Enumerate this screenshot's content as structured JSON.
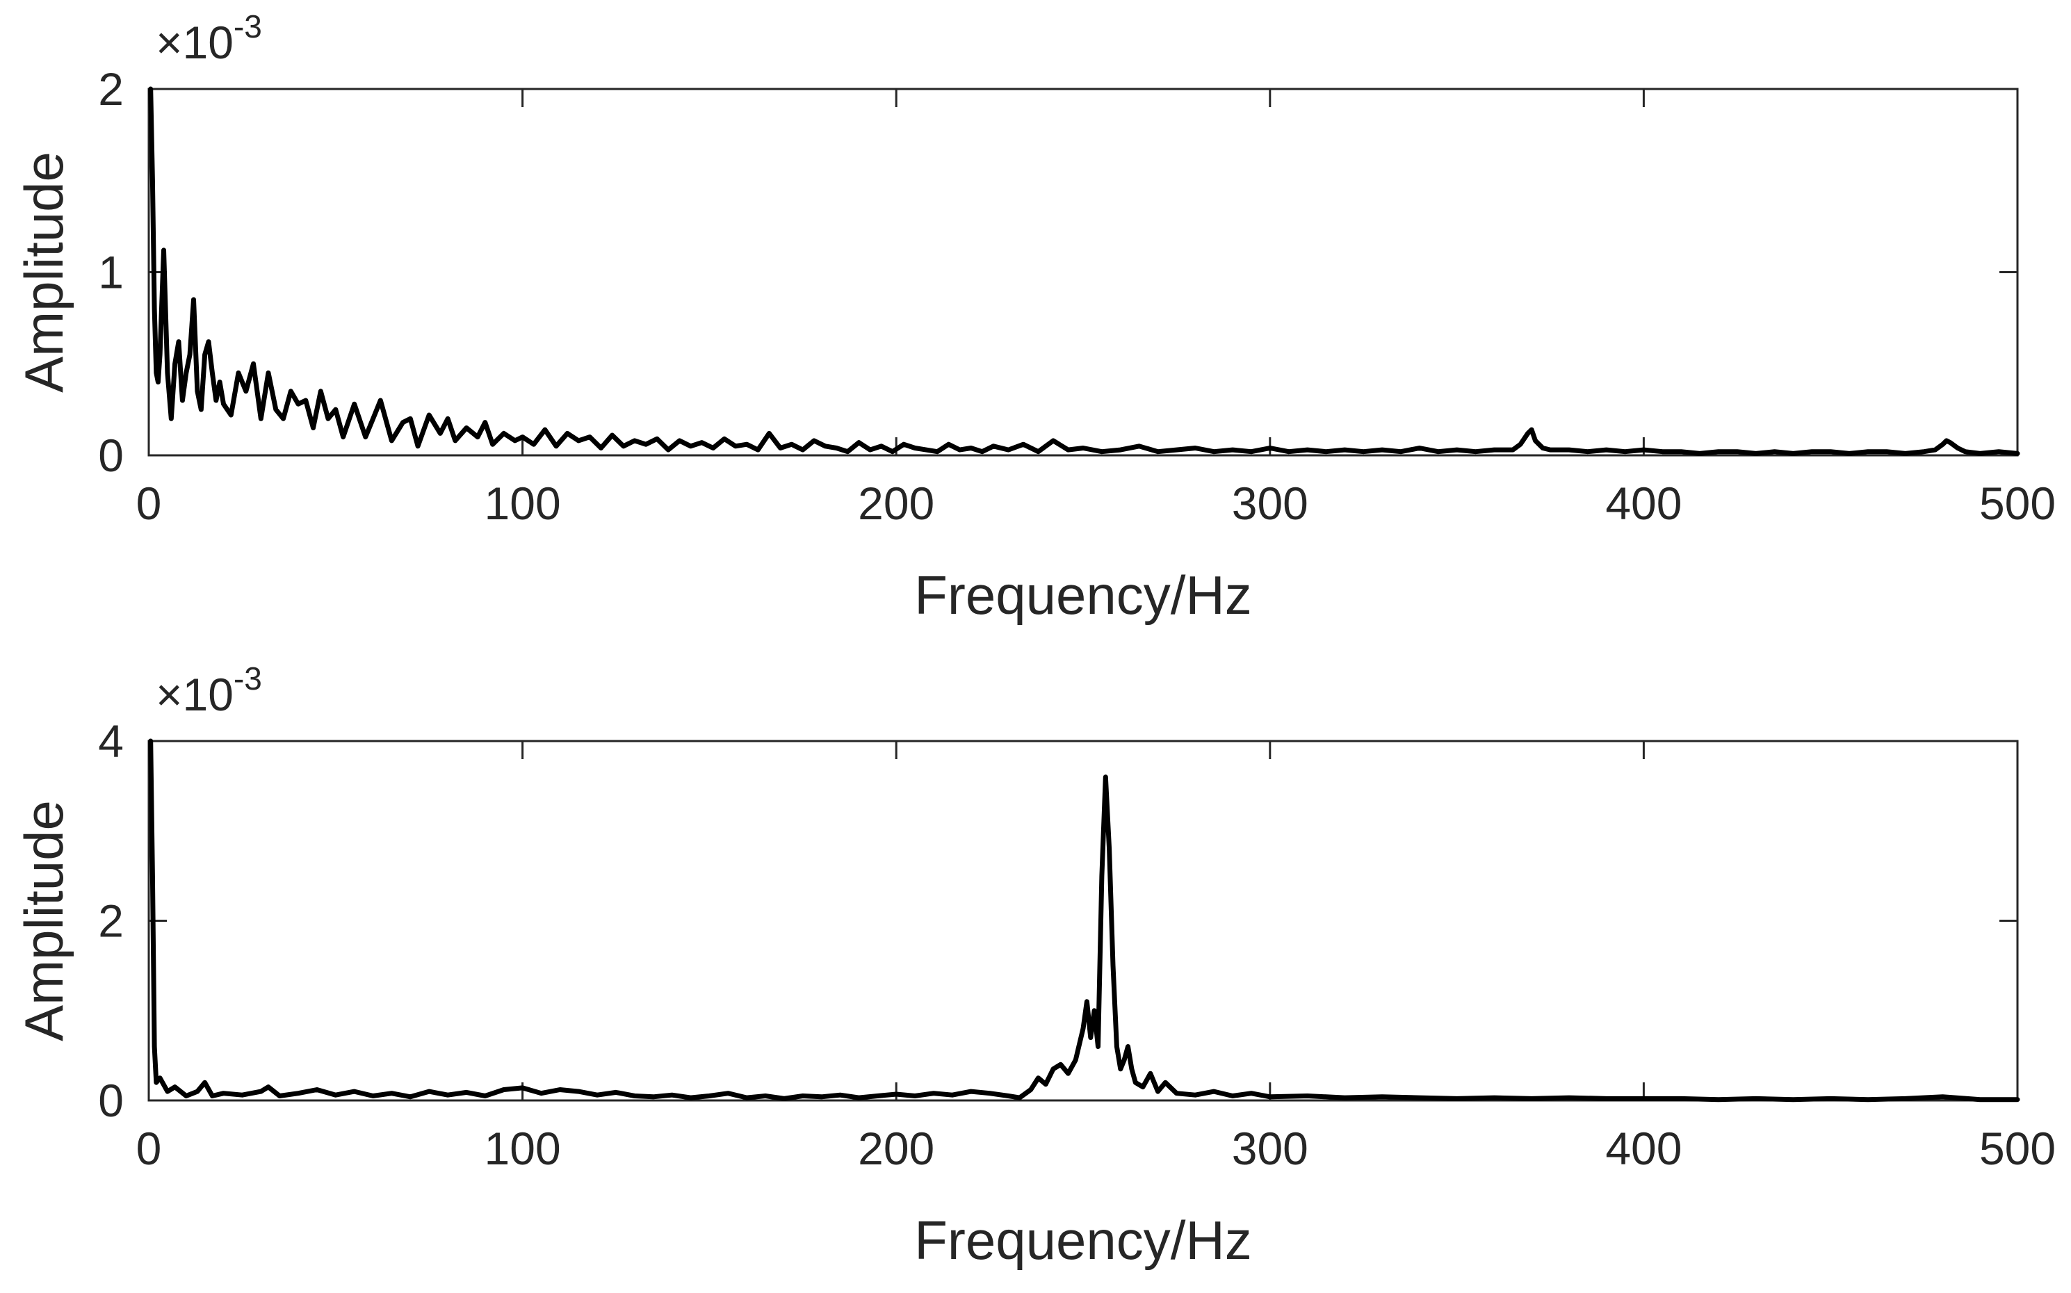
{
  "chart_data": [
    {
      "type": "line",
      "xlabel": "Frequency/Hz",
      "ylabel": "Amplitude",
      "exponent_label": "×10",
      "exponent_power": "-3",
      "xlim": [
        0,
        500
      ],
      "ylim": [
        0,
        2
      ],
      "xticks": [
        "0",
        "100",
        "200",
        "300",
        "400",
        "500"
      ],
      "yticks": [
        "0",
        "1",
        "2"
      ],
      "grid": false,
      "colors": {
        "line": "#000000",
        "axes": "#262626"
      },
      "series": [
        {
          "x": [
            0.5,
            1,
            1.5,
            2,
            2.5,
            3,
            4,
            5,
            6,
            7,
            8,
            9,
            10,
            11,
            12,
            13,
            14,
            15,
            16,
            17,
            18,
            19,
            20,
            22,
            24,
            26,
            28,
            30,
            32,
            34,
            36,
            38,
            40,
            42,
            44,
            46,
            48,
            50,
            52,
            55,
            58,
            60,
            62,
            65,
            68,
            70,
            72,
            75,
            78,
            80,
            82,
            85,
            88,
            90,
            92,
            95,
            98,
            100,
            103,
            106,
            109,
            112,
            115,
            118,
            121,
            124,
            127,
            130,
            133,
            136,
            139,
            142,
            145,
            148,
            151,
            154,
            157,
            160,
            163,
            166,
            169,
            172,
            175,
            178,
            181,
            184,
            187,
            190,
            193,
            196,
            199,
            202,
            205,
            208,
            211,
            214,
            217,
            220,
            223,
            226,
            230,
            234,
            238,
            242,
            246,
            250,
            255,
            260,
            265,
            270,
            275,
            280,
            285,
            290,
            295,
            300,
            305,
            310,
            315,
            320,
            325,
            330,
            335,
            340,
            345,
            350,
            355,
            360,
            365,
            367,
            369,
            370,
            371,
            373,
            375,
            380,
            385,
            390,
            395,
            400,
            405,
            410,
            415,
            420,
            425,
            430,
            435,
            440,
            445,
            450,
            455,
            460,
            465,
            470,
            475,
            478,
            480,
            481,
            482,
            484,
            486,
            490,
            495,
            500
          ],
          "y": [
            2.0,
            1.5,
            0.8,
            0.45,
            0.4,
            0.55,
            1.12,
            0.45,
            0.2,
            0.5,
            0.62,
            0.3,
            0.45,
            0.55,
            0.85,
            0.35,
            0.25,
            0.55,
            0.62,
            0.45,
            0.3,
            0.4,
            0.28,
            0.22,
            0.45,
            0.35,
            0.5,
            0.2,
            0.45,
            0.25,
            0.2,
            0.35,
            0.28,
            0.3,
            0.15,
            0.35,
            0.2,
            0.25,
            0.1,
            0.28,
            0.1,
            0.2,
            0.3,
            0.08,
            0.18,
            0.2,
            0.05,
            0.22,
            0.12,
            0.2,
            0.08,
            0.15,
            0.1,
            0.18,
            0.06,
            0.12,
            0.08,
            0.1,
            0.06,
            0.14,
            0.05,
            0.12,
            0.08,
            0.1,
            0.04,
            0.11,
            0.05,
            0.08,
            0.06,
            0.09,
            0.03,
            0.08,
            0.05,
            0.07,
            0.04,
            0.09,
            0.05,
            0.06,
            0.03,
            0.12,
            0.04,
            0.06,
            0.03,
            0.08,
            0.05,
            0.04,
            0.02,
            0.07,
            0.03,
            0.05,
            0.02,
            0.06,
            0.04,
            0.03,
            0.02,
            0.06,
            0.03,
            0.04,
            0.02,
            0.05,
            0.03,
            0.06,
            0.02,
            0.08,
            0.03,
            0.04,
            0.02,
            0.03,
            0.05,
            0.02,
            0.03,
            0.04,
            0.02,
            0.03,
            0.02,
            0.04,
            0.02,
            0.03,
            0.02,
            0.03,
            0.02,
            0.03,
            0.02,
            0.04,
            0.02,
            0.03,
            0.02,
            0.03,
            0.03,
            0.06,
            0.12,
            0.14,
            0.08,
            0.04,
            0.03,
            0.03,
            0.02,
            0.03,
            0.02,
            0.03,
            0.02,
            0.02,
            0.01,
            0.02,
            0.02,
            0.01,
            0.02,
            0.01,
            0.02,
            0.02,
            0.01,
            0.02,
            0.02,
            0.01,
            0.02,
            0.03,
            0.06,
            0.08,
            0.07,
            0.04,
            0.02,
            0.01,
            0.02,
            0.01
          ]
        }
      ]
    },
    {
      "type": "line",
      "xlabel": "Frequency/Hz",
      "ylabel": "Amplitude",
      "exponent_label": "×10",
      "exponent_power": "-3",
      "xlim": [
        0,
        500
      ],
      "ylim": [
        0,
        4
      ],
      "xticks": [
        "0",
        "100",
        "200",
        "300",
        "400",
        "500"
      ],
      "yticks": [
        "0",
        "2",
        "4"
      ],
      "grid": false,
      "colors": {
        "line": "#000000",
        "axes": "#262626"
      },
      "series": [
        {
          "x": [
            0.5,
            1,
            1.5,
            2,
            3,
            5,
            7,
            10,
            13,
            15,
            17,
            20,
            25,
            30,
            32,
            35,
            40,
            45,
            50,
            55,
            60,
            65,
            70,
            75,
            80,
            85,
            90,
            95,
            100,
            105,
            110,
            115,
            120,
            125,
            130,
            135,
            140,
            145,
            150,
            155,
            160,
            165,
            170,
            175,
            180,
            185,
            190,
            195,
            200,
            205,
            210,
            215,
            220,
            225,
            230,
            233,
            236,
            238,
            240,
            242,
            244,
            246,
            248,
            250,
            251,
            252,
            253,
            254,
            255,
            256,
            257,
            258,
            259,
            260,
            261,
            262,
            263,
            264,
            266,
            268,
            270,
            272,
            275,
            280,
            285,
            290,
            295,
            300,
            310,
            320,
            330,
            340,
            350,
            360,
            370,
            380,
            390,
            400,
            410,
            420,
            430,
            440,
            450,
            460,
            470,
            480,
            490,
            500
          ],
          "y": [
            4.0,
            2.5,
            0.6,
            0.2,
            0.25,
            0.1,
            0.15,
            0.05,
            0.1,
            0.2,
            0.05,
            0.08,
            0.06,
            0.1,
            0.15,
            0.05,
            0.08,
            0.12,
            0.06,
            0.1,
            0.05,
            0.08,
            0.04,
            0.1,
            0.06,
            0.09,
            0.05,
            0.12,
            0.14,
            0.08,
            0.12,
            0.1,
            0.06,
            0.09,
            0.05,
            0.04,
            0.06,
            0.03,
            0.05,
            0.08,
            0.03,
            0.05,
            0.02,
            0.05,
            0.04,
            0.06,
            0.03,
            0.05,
            0.07,
            0.05,
            0.08,
            0.06,
            0.1,
            0.08,
            0.05,
            0.03,
            0.12,
            0.25,
            0.18,
            0.35,
            0.4,
            0.3,
            0.45,
            0.8,
            1.1,
            0.7,
            1.0,
            0.6,
            2.5,
            3.6,
            2.8,
            1.5,
            0.6,
            0.35,
            0.45,
            0.6,
            0.35,
            0.2,
            0.15,
            0.3,
            0.1,
            0.2,
            0.08,
            0.06,
            0.1,
            0.05,
            0.08,
            0.04,
            0.05,
            0.03,
            0.04,
            0.03,
            0.02,
            0.03,
            0.02,
            0.03,
            0.02,
            0.02,
            0.02,
            0.01,
            0.02,
            0.01,
            0.02,
            0.01,
            0.02,
            0.04,
            0.01,
            0.01
          ]
        }
      ]
    }
  ]
}
